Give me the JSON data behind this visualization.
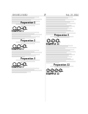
{
  "background_color": "#ffffff",
  "header_left": "US 8,841,334 B2",
  "header_right": "Feb. 23, 2014",
  "page_number": "17",
  "line_color": "#888888",
  "text_dark": "#111111",
  "text_gray": "#555555",
  "struct_color": "#111111"
}
